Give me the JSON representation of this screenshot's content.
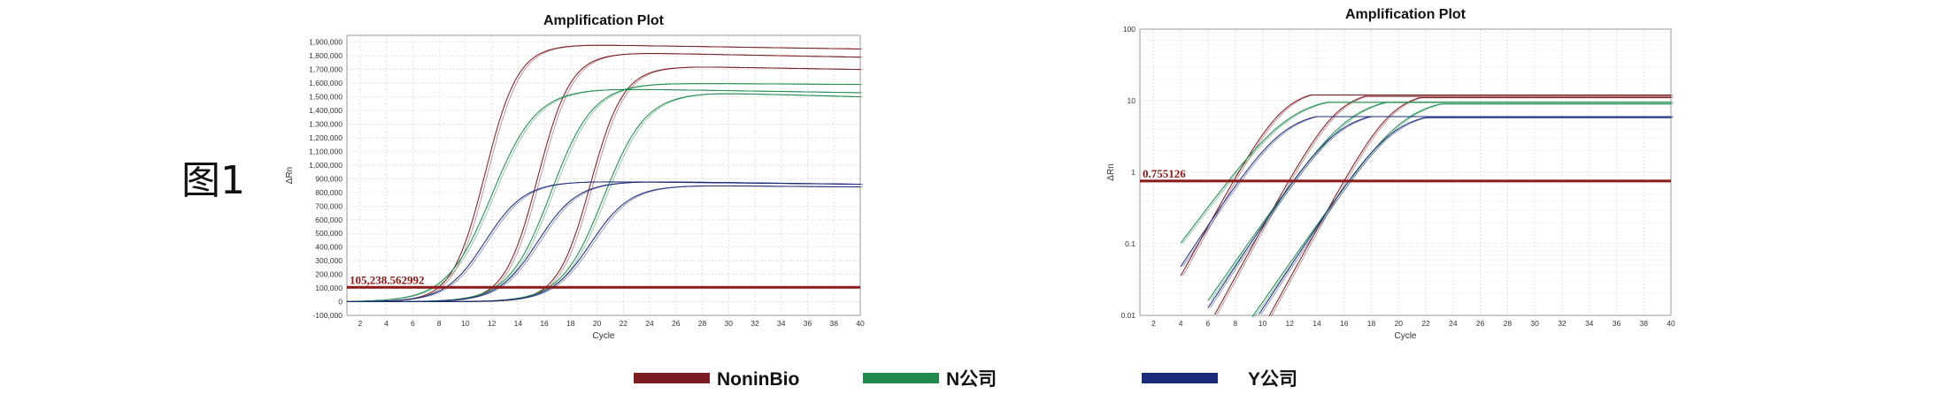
{
  "figure_label": "图1",
  "colors": {
    "noninbio": "#7b1c22",
    "n": "#1f8a4c",
    "y": "#1c2a7a",
    "threshold": "#8b1a1a",
    "grid": "#d6d6d6"
  },
  "legend": [
    {
      "label": "NoninBio",
      "color": "#7b1c22"
    },
    {
      "label": "N公司",
      "color": "#1f8a4c"
    },
    {
      "label": "Y公司",
      "color": "#1c2a7a"
    }
  ],
  "chart_data": [
    {
      "type": "line",
      "title": "Amplification Plot",
      "xlabel": "Cycle",
      "ylabel": "ΔRn",
      "xlim": [
        1,
        40
      ],
      "ylim": [
        -100000,
        1950000
      ],
      "x_ticks": [
        2,
        4,
        6,
        8,
        10,
        12,
        14,
        16,
        18,
        20,
        22,
        24,
        26,
        28,
        30,
        32,
        34,
        36,
        38,
        40
      ],
      "y_ticks": [
        -100000,
        0,
        100000,
        200000,
        300000,
        400000,
        500000,
        600000,
        700000,
        800000,
        900000,
        1000000,
        1100000,
        1200000,
        1300000,
        1400000,
        1500000,
        1600000,
        1700000,
        1800000,
        1900000
      ],
      "y_tick_labels": [
        "-100,000",
        "0",
        "100,000",
        "200,000",
        "300,000",
        "400,000",
        "500,000",
        "600,000",
        "700,000",
        "800,000",
        "900,000",
        "1,000,000",
        "1,100,000",
        "1,200,000",
        "1,300,000",
        "1,400,000",
        "1,500,000",
        "1,600,000",
        "1,700,000",
        "1,800,000",
        "1,900,000"
      ],
      "threshold": 105238.562992,
      "threshold_label": "105,238.562992",
      "grid": true,
      "scale": "linear",
      "series": [
        {
          "group": "NoninBio",
          "plateau": 1880000,
          "end": 1850000,
          "midpoint": 11.5,
          "slope": 1.25
        },
        {
          "group": "NoninBio",
          "plateau": 1820000,
          "end": 1790000,
          "midpoint": 15.5,
          "slope": 1.25
        },
        {
          "group": "NoninBio",
          "plateau": 1720000,
          "end": 1700000,
          "midpoint": 19.5,
          "slope": 1.25
        },
        {
          "group": "N公司",
          "plateau": 1560000,
          "end": 1530000,
          "midpoint": 12.0,
          "slope": 1.7
        },
        {
          "group": "N公司",
          "plateau": 1600000,
          "end": 1590000,
          "midpoint": 16.5,
          "slope": 1.6
        },
        {
          "group": "N公司",
          "plateau": 1530000,
          "end": 1500000,
          "midpoint": 20.5,
          "slope": 1.6
        },
        {
          "group": "Y公司",
          "plateau": 880000,
          "end": 860000,
          "midpoint": 11.5,
          "slope": 1.5
        },
        {
          "group": "Y公司",
          "plateau": 880000,
          "end": 860000,
          "midpoint": 15.5,
          "slope": 1.5
        },
        {
          "group": "Y公司",
          "plateau": 850000,
          "end": 840000,
          "midpoint": 19.5,
          "slope": 1.5
        }
      ]
    },
    {
      "type": "line",
      "title": "Amplification Plot",
      "xlabel": "Cycle",
      "ylabel": "ΔRn",
      "xlim": [
        1,
        40
      ],
      "ylim": [
        0.01,
        100
      ],
      "x_ticks": [
        2,
        4,
        6,
        8,
        10,
        12,
        14,
        16,
        18,
        20,
        22,
        24,
        26,
        28,
        30,
        32,
        34,
        36,
        38,
        40
      ],
      "y_ticks": [
        0.01,
        0.1,
        1,
        10,
        100
      ],
      "y_tick_labels": [
        "0.01",
        "0.1",
        "1",
        "10",
        "100"
      ],
      "threshold": 0.755126,
      "threshold_label": "0.755126",
      "grid": true,
      "scale": "log",
      "series": [
        {
          "group": "NoninBio",
          "plateau": 12,
          "start_cycle": 4,
          "midpoint": 11.5,
          "slope": 1.25
        },
        {
          "group": "NoninBio",
          "plateau": 11.5,
          "start_cycle": 6,
          "midpoint": 15.5,
          "slope": 1.25
        },
        {
          "group": "NoninBio",
          "plateau": 11,
          "start_cycle": 8,
          "midpoint": 19.5,
          "slope": 1.25
        },
        {
          "group": "N公司",
          "plateau": 9.5,
          "start_cycle": 4,
          "midpoint": 12.0,
          "slope": 1.7
        },
        {
          "group": "N公司",
          "plateau": 9.5,
          "start_cycle": 6,
          "midpoint": 16.5,
          "slope": 1.6
        },
        {
          "group": "N公司",
          "plateau": 9.0,
          "start_cycle": 8,
          "midpoint": 20.5,
          "slope": 1.6
        },
        {
          "group": "Y公司",
          "plateau": 6.0,
          "start_cycle": 4,
          "midpoint": 11.5,
          "slope": 1.5
        },
        {
          "group": "Y公司",
          "plateau": 6.0,
          "start_cycle": 6,
          "midpoint": 15.5,
          "slope": 1.5
        },
        {
          "group": "Y公司",
          "plateau": 5.8,
          "start_cycle": 8,
          "midpoint": 19.5,
          "slope": 1.5
        }
      ]
    }
  ]
}
